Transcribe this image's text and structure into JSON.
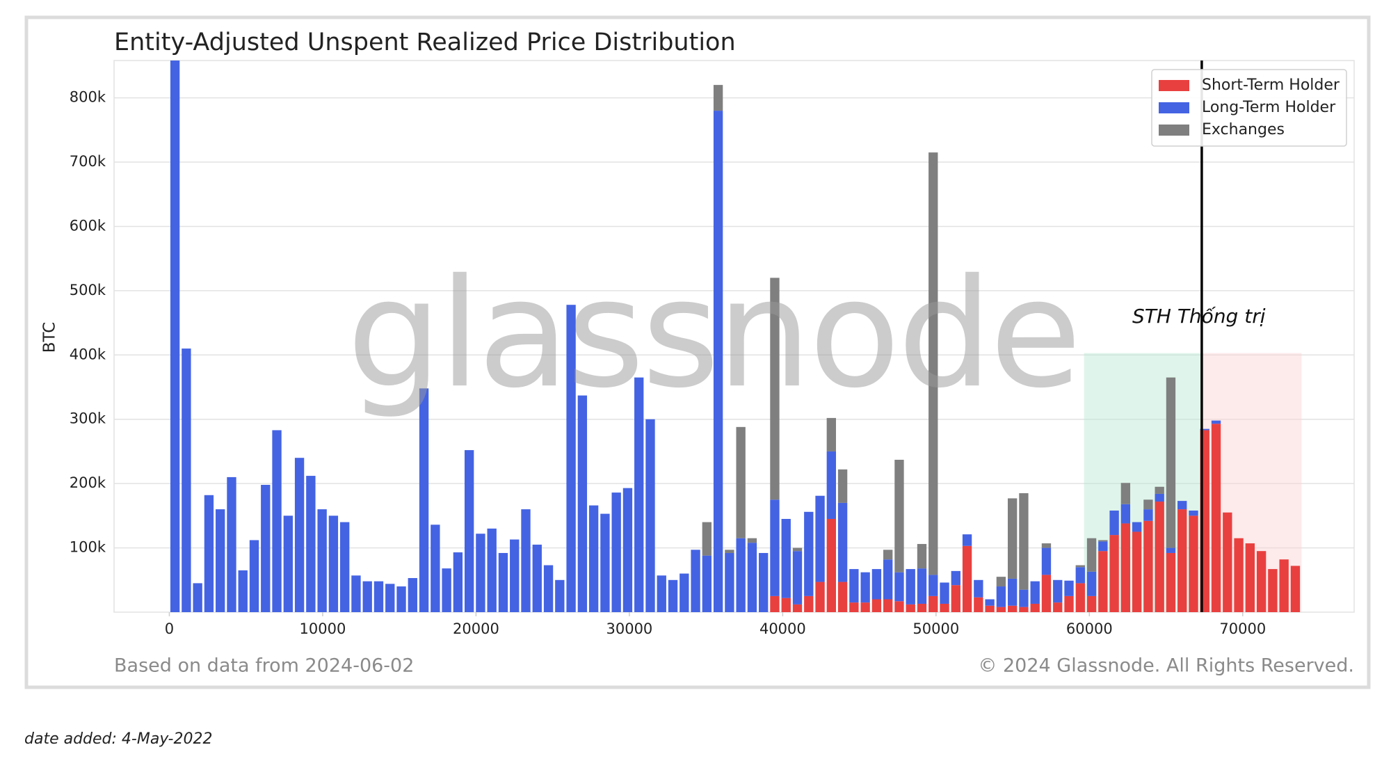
{
  "chart_data": {
    "type": "histogram",
    "title": "Entity-Adjusted Unspent Realized Price Distribution",
    "ylabel": "BTC",
    "watermark": "glassnode",
    "annotation": "STH Thống trị",
    "footer_left": "Based on data from 2024-06-02",
    "footer_right": "© 2024 Glassnode. All Rights Reserved.",
    "note": "date added: 4-May-2022",
    "stacked": true,
    "grid": true,
    "legend": "upper right",
    "xlim": [
      -3605,
      77267
    ],
    "ylim": [
      0,
      858000
    ],
    "xticks": [
      0,
      10000,
      20000,
      30000,
      40000,
      50000,
      60000,
      70000
    ],
    "yticks": [
      {
        "value": 100000,
        "label": "100k"
      },
      {
        "value": 200000,
        "label": "200k"
      },
      {
        "value": 300000,
        "label": "300k"
      },
      {
        "value": 400000,
        "label": "400k"
      },
      {
        "value": 500000,
        "label": "500k"
      },
      {
        "value": 600000,
        "label": "600k"
      },
      {
        "value": 700000,
        "label": "700k"
      },
      {
        "value": 800000,
        "label": "800k"
      }
    ],
    "vline": 67330,
    "spans": [
      {
        "x": [
          59650,
          67330
        ],
        "y": 403000,
        "color": "#b9e8d2"
      },
      {
        "x": [
          67330,
          73837
        ],
        "y": 403000,
        "color": "#fbd0d3"
      }
    ],
    "bins": [
      0,
      738,
      1476,
      2214,
      2952,
      3690,
      4428,
      5166,
      5904,
      6642,
      7380,
      8118,
      8856,
      9594,
      10332,
      11070,
      11808,
      12546,
      13284,
      14022,
      14760,
      15498,
      16236,
      16974,
      17712,
      18450,
      19188,
      19926,
      20664,
      21402,
      22140,
      22878,
      23616,
      24354,
      25092,
      25830,
      26568,
      27306,
      28044,
      28782,
      29520,
      30258,
      30996,
      31734,
      32472,
      33210,
      33948,
      34686,
      35424,
      36162,
      36900,
      37638,
      38376,
      39114,
      39852,
      40590,
      41328,
      42066,
      42804,
      43542,
      44280,
      45018,
      45756,
      46494,
      47232,
      47970,
      48708,
      49446,
      50184,
      50922,
      51660,
      52398,
      53136,
      53874,
      54612,
      55350,
      56088,
      56826,
      57564,
      58302,
      59040,
      59778,
      60516,
      61254,
      61992,
      62730,
      63468,
      64206,
      64944,
      65682,
      66420,
      67158,
      67896,
      68634,
      69372,
      70110,
      70848,
      71586,
      72324,
      73062,
      73800
    ],
    "series": [
      {
        "name": "Short-Term Holder",
        "color": "#e8403f",
        "values": [
          0,
          0,
          0,
          0,
          0,
          0,
          0,
          0,
          0,
          0,
          0,
          0,
          0,
          0,
          0,
          0,
          0,
          0,
          0,
          0,
          0,
          0,
          0,
          0,
          0,
          0,
          0,
          0,
          0,
          0,
          0,
          0,
          0,
          0,
          0,
          0,
          0,
          0,
          0,
          0,
          0,
          0,
          0,
          0,
          0,
          0,
          0,
          0,
          0,
          0,
          0,
          0,
          0,
          25000,
          22000,
          12000,
          25000,
          47000,
          145000,
          47000,
          15000,
          15000,
          20000,
          20000,
          17000,
          12000,
          13000,
          25000,
          13000,
          42000,
          103000,
          23000,
          10000,
          8000,
          10000,
          8000,
          13000,
          58000,
          15000,
          25000,
          45000,
          25000,
          95000,
          120000,
          138000,
          125000,
          142000,
          172000,
          92000,
          160000,
          150000,
          283000,
          293000,
          155000,
          115000,
          107000,
          95000,
          67000,
          82000,
          72000
        ]
      },
      {
        "name": "Long-Term Holder",
        "color": "#4463e3",
        "values": [
          860000,
          410000,
          45000,
          182000,
          160000,
          210000,
          65000,
          112000,
          198000,
          283000,
          150000,
          240000,
          212000,
          160000,
          150000,
          140000,
          57000,
          48000,
          48000,
          44000,
          40000,
          53000,
          348000,
          136000,
          68000,
          93000,
          252000,
          122000,
          130000,
          92000,
          113000,
          160000,
          105000,
          73000,
          50000,
          478000,
          337000,
          166000,
          153000,
          186000,
          193000,
          365000,
          300000,
          57000,
          50000,
          60000,
          97000,
          88000,
          780000,
          92000,
          115000,
          108000,
          92000,
          150000,
          123000,
          83000,
          131000,
          134000,
          105000,
          123000,
          52000,
          47000,
          47000,
          62000,
          45000,
          55000,
          55000,
          33000,
          33000,
          22000,
          18000,
          27000,
          10000,
          32000,
          42000,
          27000,
          35000,
          42000,
          35000,
          24000,
          25000,
          38000,
          15000,
          38000,
          30000,
          15000,
          18000,
          12000,
          8000,
          13000,
          8000,
          2000,
          5000,
          0,
          0,
          0,
          0,
          0,
          0,
          0
        ]
      },
      {
        "name": "Exchanges",
        "color": "#7f7f7f",
        "values": [
          0,
          0,
          0,
          0,
          0,
          0,
          0,
          0,
          0,
          0,
          0,
          0,
          0,
          0,
          0,
          0,
          0,
          0,
          0,
          0,
          0,
          0,
          0,
          0,
          0,
          0,
          0,
          0,
          0,
          0,
          0,
          0,
          0,
          0,
          0,
          0,
          0,
          0,
          0,
          0,
          0,
          0,
          0,
          0,
          0,
          0,
          0,
          52000,
          40000,
          5000,
          173000,
          7000,
          0,
          345000,
          0,
          5000,
          0,
          0,
          52000,
          52000,
          0,
          0,
          0,
          15000,
          175000,
          0,
          38000,
          657000,
          0,
          0,
          0,
          0,
          0,
          15000,
          125000,
          150000,
          0,
          7000,
          0,
          0,
          3000,
          52000,
          2000,
          0,
          33000,
          0,
          15000,
          11000,
          265000,
          0,
          0,
          0,
          0,
          0,
          0,
          0,
          0,
          0,
          0,
          0
        ]
      }
    ]
  }
}
